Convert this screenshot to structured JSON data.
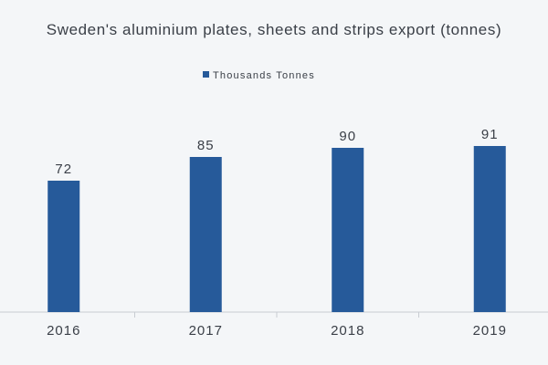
{
  "chart_data": {
    "type": "bar",
    "title": "Sweden's aluminium plates, sheets and strips export (tonnes)",
    "legend": {
      "position": "top-center"
    },
    "categories": [
      "2016",
      "2017",
      "2018",
      "2019"
    ],
    "series": [
      {
        "name": "Thousands Tonnes",
        "values": [
          72,
          85,
          90,
          91
        ],
        "color": "#265a9a"
      }
    ],
    "ylim": [
      0,
      100
    ],
    "grid": false,
    "xlabel": "",
    "ylabel": ""
  },
  "colors": {
    "background": "#f4f6f8",
    "text": "#3a3f47",
    "axis": "#c8ccd2"
  }
}
